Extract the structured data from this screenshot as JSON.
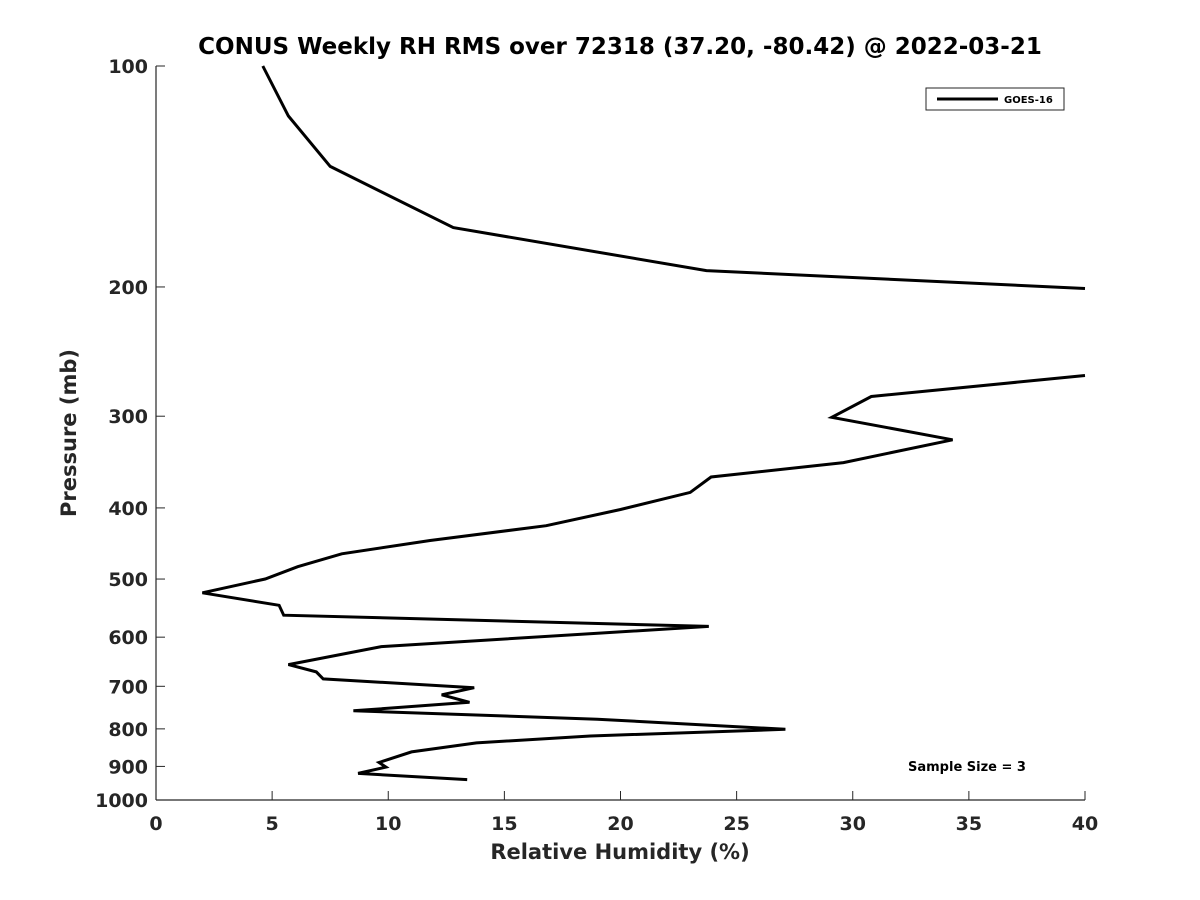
{
  "chart_data": {
    "type": "line",
    "title": "CONUS Weekly RH RMS over 72318 (37.20, -80.42) @ 2022-03-21",
    "xlabel": "Relative Humidity (%)",
    "ylabel": "Pressure (mb)",
    "xlim": [
      0,
      40
    ],
    "ylim": [
      100,
      1000
    ],
    "y_scale": "log",
    "y_reversed": true,
    "x_ticks": [
      "0",
      "5",
      "10",
      "15",
      "20",
      "25",
      "30",
      "35",
      "40"
    ],
    "y_ticks": [
      "100",
      "200",
      "300",
      "400",
      "500",
      "600",
      "700",
      "800",
      "900",
      "1000"
    ],
    "grid": false,
    "legend_position": "top-right",
    "annotation": "Sample Size = 3",
    "series": [
      {
        "name": "GOES-16",
        "color": "#000000",
        "x": [
          4.6,
          5.7,
          7.5,
          12.8,
          23.7,
          40,
          null,
          40,
          30.8,
          29.1,
          34.3,
          29.6,
          23.9,
          23.0,
          20.0,
          16.8,
          11.8,
          8.0,
          6.1,
          4.7,
          2.0,
          5.3,
          5.5,
          23.8,
          9.7,
          5.7,
          6.9,
          7.2,
          13.7,
          12.3,
          13.5,
          8.5,
          19.0,
          27.1,
          18.7,
          13.8,
          11.0,
          9.6,
          9.9,
          8.7,
          13.4
        ],
        "y": [
          100,
          117,
          137,
          166,
          190,
          201,
          null,
          264,
          282,
          301,
          323,
          347,
          363,
          381,
          402,
          423,
          443,
          462,
          481,
          500,
          522,
          543,
          560,
          580,
          618,
          654,
          669,
          684,
          703,
          719,
          736,
          756,
          776,
          801,
          818,
          836,
          860,
          889,
          902,
          920,
          938
        ]
      }
    ]
  }
}
